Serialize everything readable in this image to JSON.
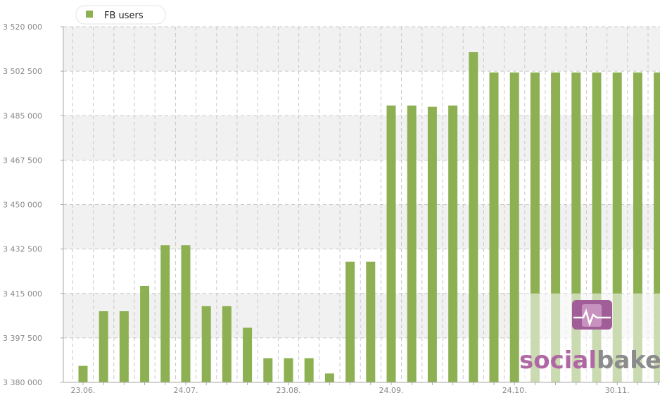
{
  "colors": {
    "bar": "#8db052",
    "band": "#f1f1f1",
    "grid": "#c9c9c9",
    "axis": "#aaaaaa",
    "watermark_social": "#b068a4",
    "watermark_bakers": "#8b8b8b"
  },
  "watermark": {
    "part1": "social",
    "part2": "bakers",
    "icon": "heartbeat-logo-icon"
  },
  "chart_data": {
    "type": "bar",
    "legend": {
      "position": "top-left"
    },
    "grid": true,
    "series": [
      {
        "name": "FB users",
        "values": [
          3386500,
          3408000,
          3408000,
          3418000,
          3434000,
          3434000,
          3410000,
          3410000,
          3401500,
          3389500,
          3389500,
          3389500,
          3383500,
          3427500,
          3427500,
          3489000,
          3489000,
          3488500,
          3489000,
          3510000,
          3502000,
          3502000,
          3502000,
          3502000,
          3502000,
          3502000,
          3502000,
          3502000,
          3502000
        ]
      }
    ],
    "x_tick_labels": [
      {
        "label": "23.06.",
        "index": 0
      },
      {
        "label": "24.07.",
        "index": 5
      },
      {
        "label": "23.08.",
        "index": 10
      },
      {
        "label": "24.09.",
        "index": 15
      },
      {
        "label": "24.10.",
        "index": 21
      },
      {
        "label": "30.11.",
        "index": 26
      }
    ],
    "y_ticks": [
      3380000,
      3397500,
      3415000,
      3432500,
      3450000,
      3467500,
      3485000,
      3502500,
      3520000
    ],
    "y_tick_labels": [
      "3 380 000",
      "3 397 500",
      "3 415 000",
      "3 432 500",
      "3 450 000",
      "3 467 500",
      "3 485 000",
      "3 502 500",
      "3 520 000"
    ],
    "ylim": [
      3380000,
      3520000
    ]
  }
}
